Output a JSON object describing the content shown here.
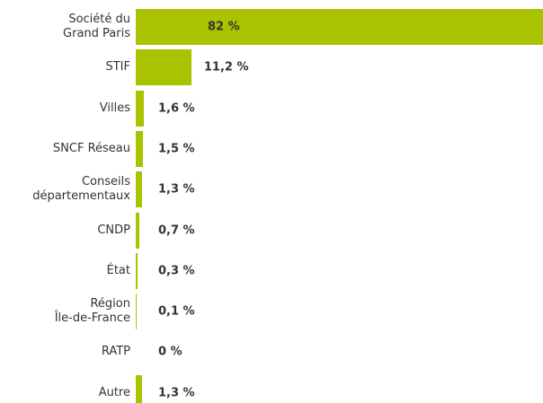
{
  "chart_data": {
    "type": "bar",
    "orientation": "horizontal",
    "color": "#a9c300",
    "categories": [
      "Société du\nGrand Paris",
      "STIF",
      "Villes",
      "SNCF Réseau",
      "Conseils\ndépartementaux",
      "CNDP",
      "État",
      "Région\nÎle-de-France",
      "RATP",
      "Autre"
    ],
    "values": [
      82,
      11.2,
      1.6,
      1.5,
      1.3,
      0.7,
      0.3,
      0.1,
      0,
      1.3
    ],
    "value_labels": [
      "82 %",
      "11,2 %",
      "1,6 %",
      "1,5 %",
      "1,3 %",
      "0,7 %",
      "0,3 %",
      "0,1 %",
      "0 %",
      "1,3 %"
    ]
  }
}
